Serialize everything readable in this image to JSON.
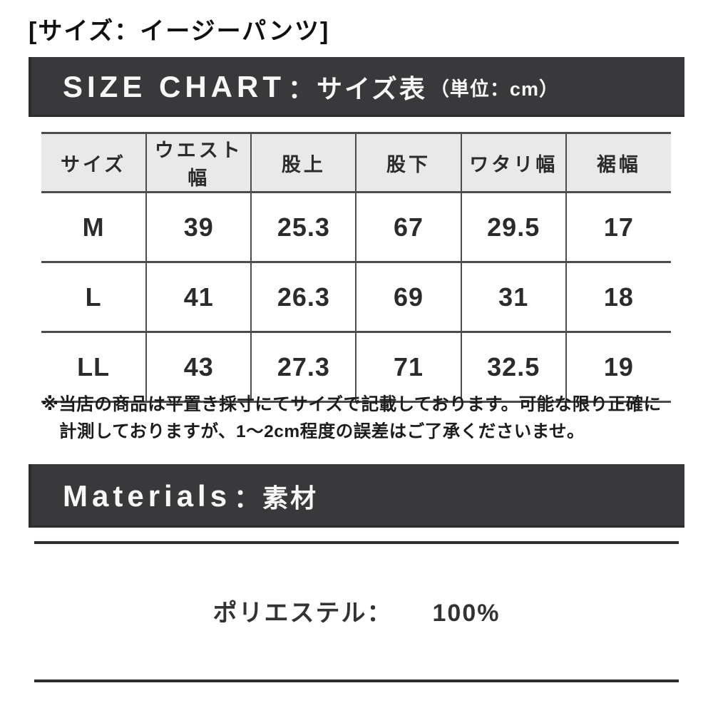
{
  "heading": "[サイズ：イージーパンツ]",
  "size_chart_banner": {
    "title_en": "SIZE CHART",
    "separator": "：",
    "title_ja": "サイズ表",
    "unit_note": "（単位：cm）"
  },
  "size_table": {
    "columns": [
      "サイズ",
      "ウエスト幅",
      "股上",
      "股下",
      "ワタリ幅",
      "裾幅"
    ],
    "rows": [
      {
        "cells": [
          "M",
          "39",
          "25.3",
          "67",
          "29.5",
          "17"
        ]
      },
      {
        "cells": [
          "L",
          "41",
          "26.3",
          "69",
          "31",
          "18"
        ]
      },
      {
        "cells": [
          "LL",
          "43",
          "27.3",
          "71",
          "32.5",
          "19"
        ]
      }
    ]
  },
  "note": {
    "line1": "※当店の商品は平置き採寸にてサイズで記載しております。可能な限り正確に",
    "line2": "計測しておりますが、1〜2cm程度の誤差はご了承くださいませ。"
  },
  "materials_banner": {
    "title_en": "Materials",
    "separator": "：",
    "title_ja": "素材"
  },
  "materials": {
    "label": "ポリエステル：",
    "value": "100%"
  },
  "colors": {
    "banner_background": "#39393b",
    "banner_text": "#f7f7f7",
    "table_header_background": "#e9e9e9",
    "table_border": "#4c4c4c",
    "body_text": "#262626",
    "rule_line": "#2d2d2d"
  }
}
